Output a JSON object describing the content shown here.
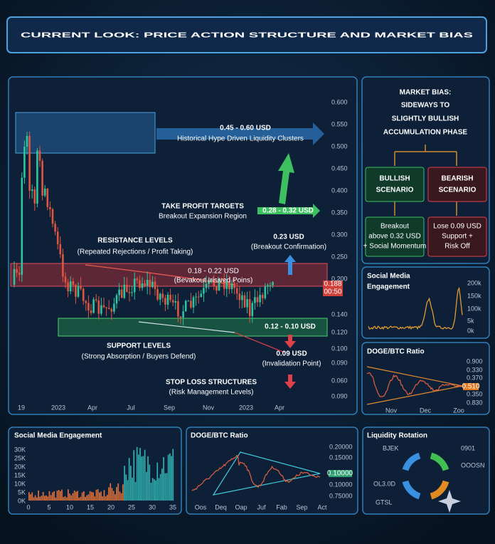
{
  "title": "CURRENT LOOK: PRICE ACTION STRUCTURE AND MARKET BIAS",
  "main_chart": {
    "y_labels": [
      "0.600",
      "0.550",
      "0.500",
      "0.450",
      "0.400",
      "0.350",
      "0.300",
      "0.250",
      "0.200",
      "0.140",
      "0.120",
      "0.100",
      "0.090",
      "0.060",
      "0.090"
    ],
    "price_tag": [
      "0.188",
      "00:50"
    ],
    "x_labels": [
      "19",
      "2023",
      "Apr",
      "Jul",
      "Sep",
      "Nov",
      "2023",
      "Apr"
    ],
    "annotations": {
      "hype_range": "0.45 - 0.60 USD",
      "hype_text": "Historical Hype Driven Liquidity Clusters",
      "tp_title": "TAKE PROFIT TARGETS",
      "tp_text": "Breakout Expansion Region",
      "tp_range": "0.28 - 0.32 USD",
      "breakout_value": "0.23 USD",
      "breakout_text": "(Breakout Confirmation)",
      "res_title": "RESISTANCE LEVELS",
      "res_text": "(Repeated Rejections / Profit Taking)",
      "res_range": "0.18 - 0.22 USD",
      "res_note": "(Bevakout Irisived Poins)",
      "sup_range": "0.12 - 0.10 USD",
      "sup_title": "SUPPORT LEVELS",
      "sup_text": "(Strong Absorption / Buyers Defend)",
      "inval_value": "0.09 USD",
      "inval_text": "(Invalidation Point)",
      "sl_title": "STOP LOSS STRUCTURES",
      "sl_text": "(Risk Management Levels)"
    }
  },
  "market_bias": {
    "heading": "MARKET BIAS:",
    "lines": [
      "SIDEWAYS TO",
      "SLIGHTLY BULLISH",
      "ACCUMULATION PHASE"
    ],
    "bullish": {
      "title": [
        "BULLISH",
        "SCENARIO"
      ],
      "detail": [
        "Breakout",
        "above 0.32 USD",
        "+ Social Momentum"
      ]
    },
    "bearish": {
      "title": [
        "BEARISH",
        "SCENARIO"
      ],
      "detail": [
        "Lose 0.09 USD",
        "Support +",
        "Risk Off"
      ]
    }
  },
  "social_small": {
    "title": [
      "Social Media",
      "Engagement"
    ],
    "y_labels": [
      "200k",
      "150k",
      "100k",
      "5k",
      "0k"
    ]
  },
  "ratio_small": {
    "title": "DOGE/BTC Ratio",
    "y_labels": [
      "0.900",
      "0.330",
      "0.370",
      "0.350",
      "0.830"
    ],
    "price_tag": "0.510",
    "x_labels": [
      "Nov",
      "Dec",
      "Zoo"
    ]
  },
  "social_bottom": {
    "title": "Social Media Engagement",
    "y_labels": [
      "30K",
      "25K",
      "20K",
      "15K",
      "10K",
      "5K",
      "0K"
    ],
    "x_labels": [
      "0",
      "5",
      "10",
      "15",
      "20",
      "25",
      "30",
      "35"
    ]
  },
  "ratio_bottom": {
    "title": "DOGE/BTC Ratio",
    "y_labels": [
      "0.20000",
      "0.15000",
      "0.10000",
      "0.75000"
    ],
    "price_tag": "0.10000",
    "x_labels": [
      "Oos",
      "Deq",
      "Oap",
      "Juf",
      "Fab",
      "Sep",
      "Act"
    ]
  },
  "liquidity": {
    "title": "Liquidity Rotation",
    "labels": [
      "BJEK",
      "0901",
      "OOOSN",
      "OL3.0D",
      "GTSL"
    ]
  }
}
